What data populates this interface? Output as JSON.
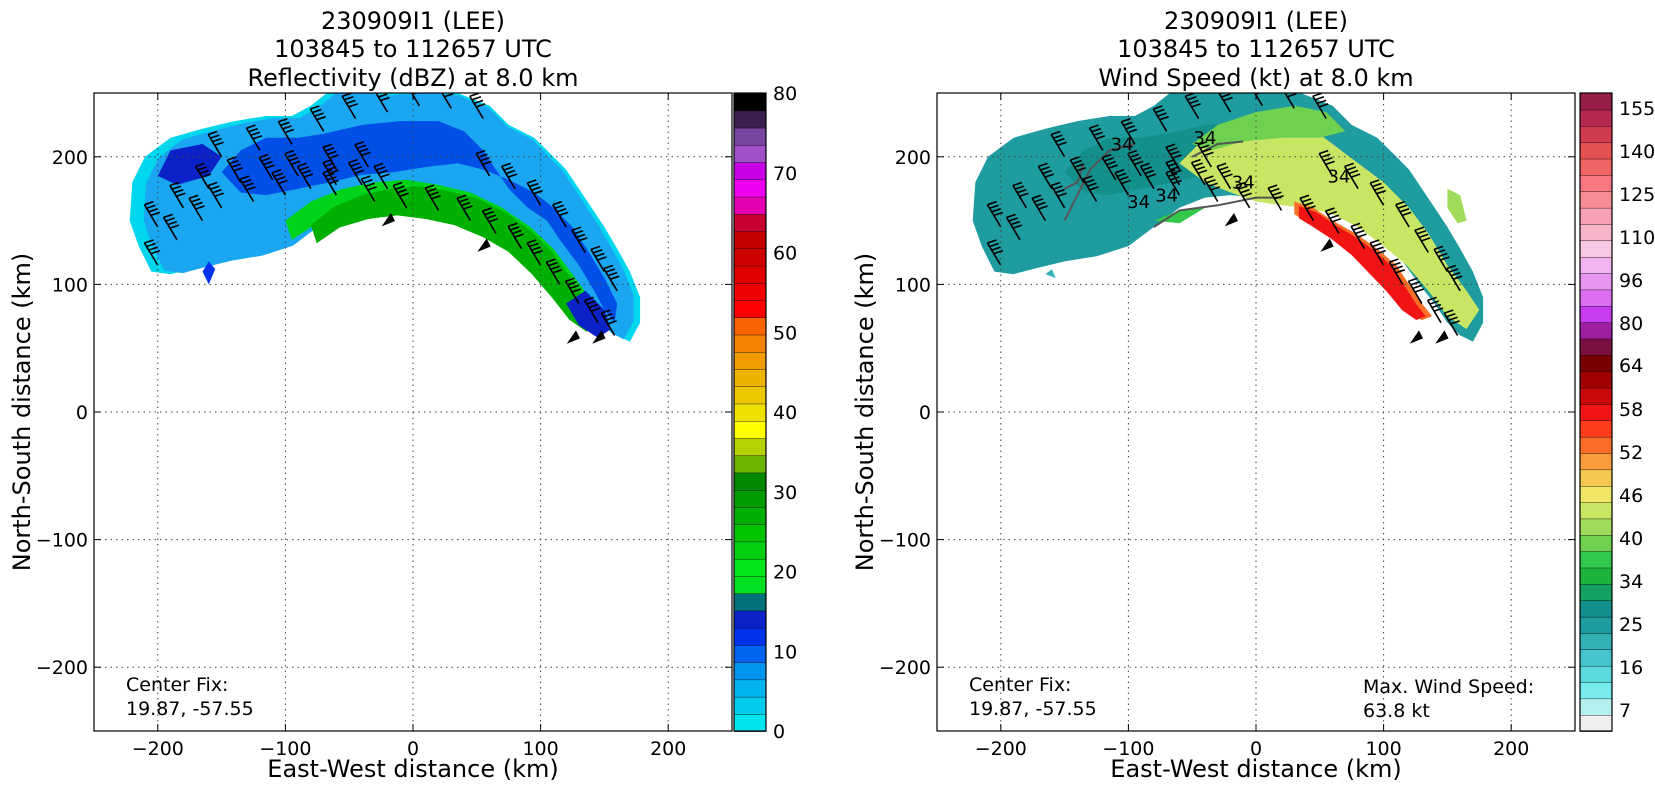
{
  "chart_data": [
    {
      "type": "heatmap",
      "title_lines": [
        "230909I1 (LEE)",
        "103845 to 112657 UTC",
        "Reflectivity (dBZ) at 8.0 km"
      ],
      "xlabel": "East-West distance (km)",
      "ylabel": "North-South distance (km)",
      "xlim": [
        -250,
        250
      ],
      "ylim": [
        -250,
        250
      ],
      "xticks": [
        -200,
        -100,
        0,
        100,
        200
      ],
      "yticks": [
        -200,
        -100,
        0,
        100,
        200
      ],
      "grid": true,
      "colorbar": {
        "min": 0,
        "max": 80,
        "ticks": [
          0,
          10,
          20,
          30,
          40,
          50,
          60,
          70,
          80
        ],
        "colors": [
          "#00e5ee",
          "#00ccee",
          "#00b4f0",
          "#0096f0",
          "#0064f0",
          "#0032f0",
          "#0a22c8",
          "#00737a",
          "#00e020",
          "#00e61a",
          "#00d010",
          "#00c400",
          "#00b000",
          "#009c00",
          "#008800",
          "#6cb400",
          "#b4d200",
          "#ffff00",
          "#f0e200",
          "#ecc800",
          "#ecb400",
          "#f09c00",
          "#f48400",
          "#fa6400",
          "#ff0000",
          "#f00000",
          "#e00000",
          "#d00000",
          "#c40000",
          "#c80032",
          "#e600b4",
          "#f000f0",
          "#c800e6",
          "#a050c8",
          "#7846a0",
          "#3c1e50",
          "#000000"
        ]
      },
      "annotation_left": [
        "Center Fix:",
        "19.87, -57.55"
      ],
      "annotation_right": [],
      "shape_field": "reflectivity"
    },
    {
      "type": "heatmap",
      "title_lines": [
        "230909I1 (LEE)",
        "103845 to 112657 UTC",
        "Wind Speed (kt) at 8.0 km"
      ],
      "xlabel": "East-West distance (km)",
      "ylabel": "North-South distance (km)",
      "xlim": [
        -250,
        250
      ],
      "ylim": [
        -250,
        250
      ],
      "xticks": [
        -200,
        -100,
        0,
        100,
        200
      ],
      "yticks": [
        -200,
        -100,
        0,
        100,
        200
      ],
      "grid": true,
      "colorbar": {
        "tick_labels": [
          "7",
          "16",
          "25",
          "34",
          "40",
          "46",
          "52",
          "58",
          "64",
          "80",
          "96",
          "110",
          "125",
          "140",
          "155"
        ],
        "colors": [
          "#f0f0f0",
          "#b4f0f0",
          "#78ecec",
          "#5ad8dc",
          "#46c4cc",
          "#32b0b4",
          "#1e9ca0",
          "#14908c",
          "#14a060",
          "#1eb43c",
          "#32c84b",
          "#6ed250",
          "#a0dc5a",
          "#c8e664",
          "#f0e664",
          "#f5c850",
          "#fa9c3c",
          "#fa6e28",
          "#ff3c1e",
          "#f01414",
          "#c80a0a",
          "#a00000",
          "#780000",
          "#7a1040",
          "#a01ea0",
          "#c83cf0",
          "#dc6ef0",
          "#e696f0",
          "#f0b4f0",
          "#f8c8e6",
          "#f8b4c8",
          "#f8a0b4",
          "#f88c96",
          "#f87882",
          "#f06464",
          "#e65050",
          "#d23c50",
          "#b42850",
          "#961e46"
        ]
      },
      "contour_label": "34",
      "annotation_left": [
        "Center Fix:",
        "19.87, -57.55"
      ],
      "annotation_right": [
        "Max. Wind Speed:",
        "63.8 kt"
      ],
      "shape_field": "wind"
    }
  ]
}
